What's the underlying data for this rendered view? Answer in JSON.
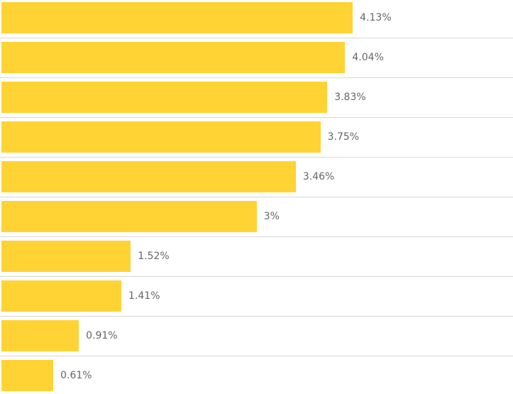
{
  "chart_data": {
    "type": "bar",
    "orientation": "horizontal",
    "categories": [],
    "values": [
      4.13,
      4.04,
      3.83,
      3.75,
      3.46,
      3,
      1.52,
      1.41,
      0.91,
      0.61
    ],
    "labels": [
      "4.13%",
      "4.04%",
      "3.83%",
      "3.75%",
      "3.46%",
      "3%",
      "1.52%",
      "1.41%",
      "0.91%",
      "0.61%"
    ],
    "xlim": [
      0,
      6
    ],
    "color": "#FFD333",
    "grid": false
  }
}
